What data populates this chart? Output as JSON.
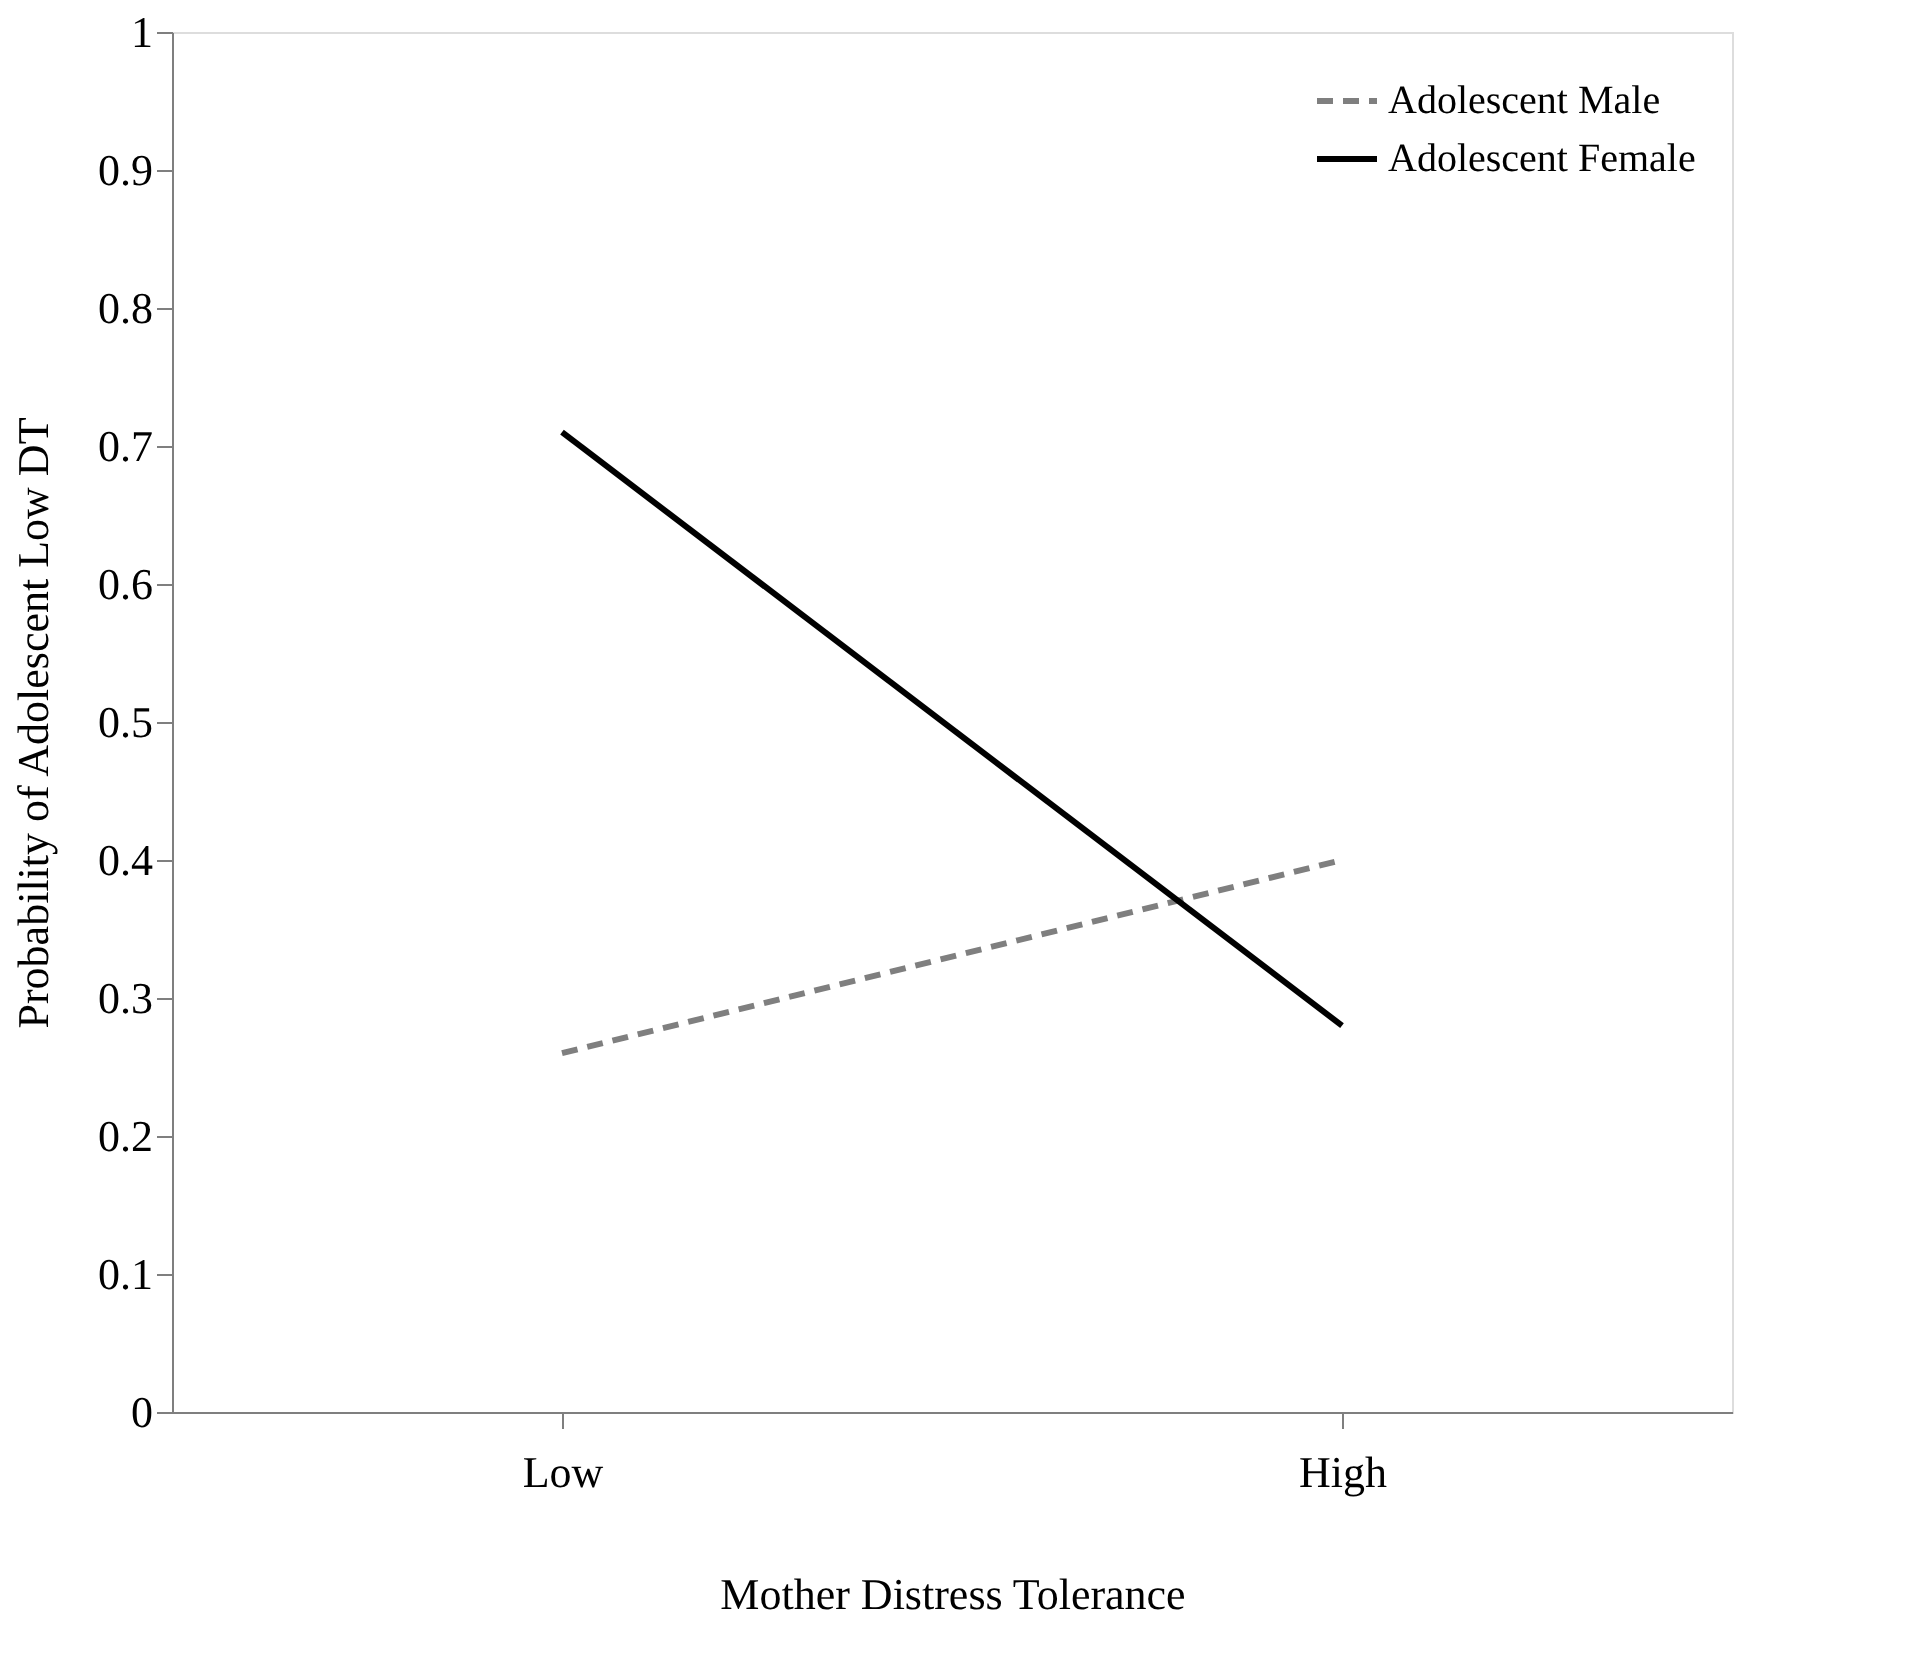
{
  "chart_data": {
    "type": "line",
    "xlabel": "Mother Distress Tolerance",
    "ylabel": "Probability of Adolescent Low DT",
    "categories": [
      "Low",
      "High"
    ],
    "series": [
      {
        "name": "Adolescent Male",
        "color": "#7f7f7f",
        "line_style": "dashed",
        "values": [
          0.26,
          0.4
        ]
      },
      {
        "name": "Adolescent Female",
        "color": "#000000",
        "line_style": "solid",
        "values": [
          0.71,
          0.28
        ]
      }
    ],
    "ylim": [
      0,
      1
    ],
    "yticks": [
      0,
      0.1,
      0.2,
      0.3,
      0.4,
      0.5,
      0.6,
      0.7,
      0.8,
      0.9,
      1
    ],
    "grid": false,
    "legend": "top right",
    "marker": "none"
  }
}
